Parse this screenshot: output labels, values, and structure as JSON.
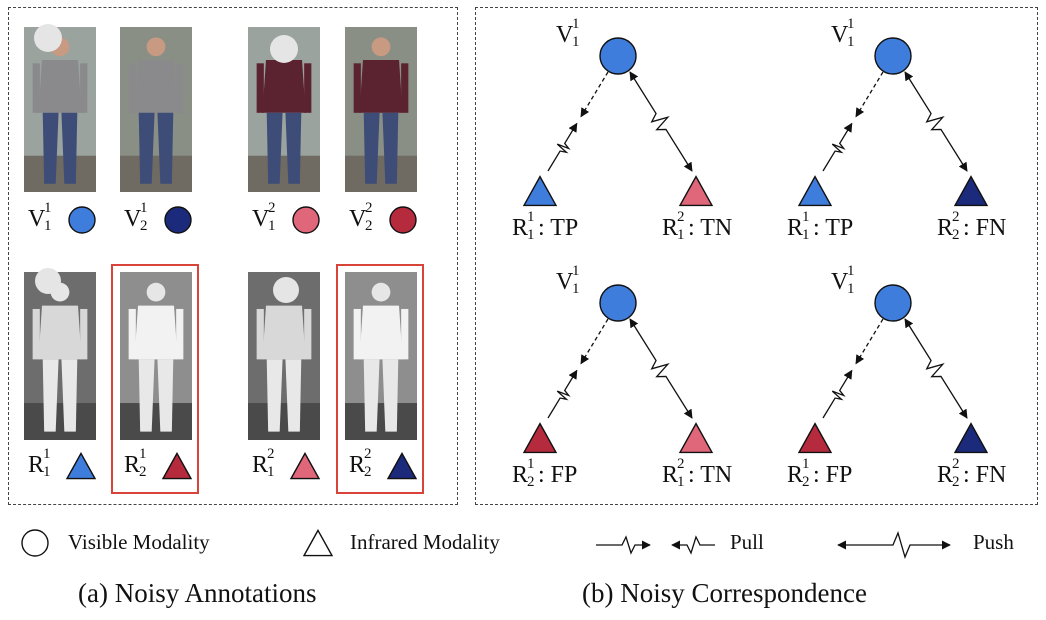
{
  "colors": {
    "visible_light": "#3f7ddc",
    "visible_dark": "#1b2a7a",
    "pink": "#e0667a",
    "crimson": "#b52a3c",
    "red_box": "#d9443a"
  },
  "panel_a": {
    "caption": "(a) Noisy Annotations",
    "top_row": [
      {
        "base": "V",
        "sup": "1",
        "sub": "1",
        "shape": "circle",
        "color": "visible_light",
        "photo": "rgb"
      },
      {
        "base": "V",
        "sup": "1",
        "sub": "2",
        "shape": "circle",
        "color": "visible_dark",
        "photo": "rgb"
      },
      {
        "base": "V",
        "sup": "2",
        "sub": "1",
        "shape": "circle",
        "color": "pink",
        "photo": "rgb"
      },
      {
        "base": "V",
        "sup": "2",
        "sub": "2",
        "shape": "circle",
        "color": "crimson",
        "photo": "rgb"
      }
    ],
    "bottom_row": [
      {
        "base": "R",
        "sup": "1",
        "sub": "1",
        "shape": "triangle",
        "color": "visible_light",
        "photo": "ir",
        "flagged": false
      },
      {
        "base": "R",
        "sup": "1",
        "sub": "2",
        "shape": "triangle",
        "color": "crimson",
        "photo": "ir",
        "flagged": true
      },
      {
        "base": "R",
        "sup": "2",
        "sub": "1",
        "shape": "triangle",
        "color": "pink",
        "photo": "ir",
        "flagged": false
      },
      {
        "base": "R",
        "sup": "2",
        "sub": "2",
        "shape": "triangle",
        "color": "visible_dark",
        "photo": "ir",
        "flagged": true
      }
    ]
  },
  "panel_b": {
    "caption": "(b) Noisy Correspondence",
    "groups": [
      {
        "anchor": {
          "base": "V",
          "sup": "1",
          "sub": "1"
        },
        "left": {
          "base": "R",
          "sup": "1",
          "sub": "1",
          "tag": "TP",
          "color": "visible_light"
        },
        "right": {
          "base": "R",
          "sup": "2",
          "sub": "1",
          "tag": "TN",
          "color": "pink"
        }
      },
      {
        "anchor": {
          "base": "V",
          "sup": "1",
          "sub": "1"
        },
        "left": {
          "base": "R",
          "sup": "1",
          "sub": "1",
          "tag": "TP",
          "color": "visible_light"
        },
        "right": {
          "base": "R",
          "sup": "2",
          "sub": "2",
          "tag": "FN",
          "color": "visible_dark"
        }
      },
      {
        "anchor": {
          "base": "V",
          "sup": "1",
          "sub": "1"
        },
        "left": {
          "base": "R",
          "sup": "1",
          "sub": "2",
          "tag": "FP",
          "color": "crimson"
        },
        "right": {
          "base": "R",
          "sup": "2",
          "sub": "1",
          "tag": "TN",
          "color": "pink"
        }
      },
      {
        "anchor": {
          "base": "V",
          "sup": "1",
          "sub": "1"
        },
        "left": {
          "base": "R",
          "sup": "1",
          "sub": "2",
          "tag": "FP",
          "color": "crimson"
        },
        "right": {
          "base": "R",
          "sup": "2",
          "sub": "2",
          "tag": "FN",
          "color": "visible_dark"
        }
      }
    ]
  },
  "legend": {
    "visible": "Visible Modality",
    "infrared": "Infrared Modality",
    "pull": "Pull",
    "push": "Push"
  }
}
